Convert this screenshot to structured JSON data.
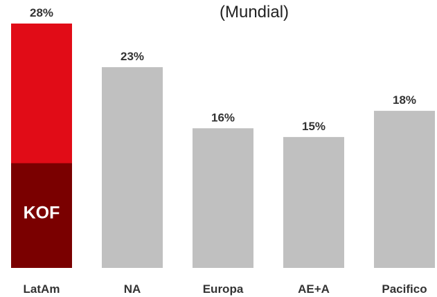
{
  "chart_data": {
    "type": "bar",
    "subtitle": "(Mundial)",
    "categories": [
      "LatAm",
      "NA",
      "Europa",
      "AE+A",
      "Pacifico"
    ],
    "values": [
      28,
      23,
      16,
      15,
      18
    ],
    "value_labels": [
      "28%",
      "23%",
      "16%",
      "15%",
      "18%"
    ],
    "ylim": [
      0,
      28
    ],
    "grid": false,
    "highlight": {
      "category": "LatAm",
      "segment_value": 12,
      "label": "KOF",
      "color": "#7a0000"
    },
    "colors": {
      "highlight_bar": "#e10c17",
      "default_bar": "#c0c0c0"
    }
  }
}
